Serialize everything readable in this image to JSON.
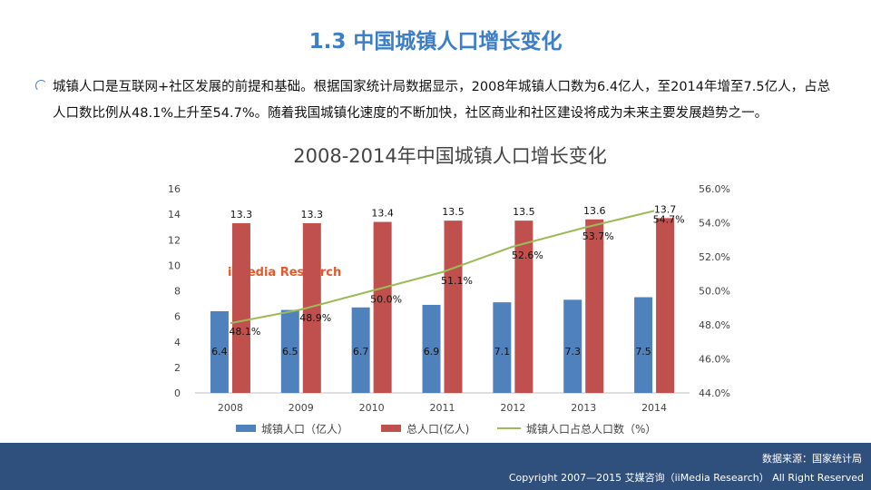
{
  "page": {
    "title": "1.3 中国城镇人口增长变化",
    "paragraph": "城镇人口是互联网+社区发展的前提和基础。根据国家统计局数据显示，2008年城镇人口数为6.4亿人，至2014年增至7.5亿人，占总人口数比例从48.1%上升至54.7%。随着我国城镇化速度的不断加快，社区商业和社区建设将成为未来主要发展趋势之一。"
  },
  "chart_data": {
    "type": "bar",
    "title": "2008-2014年中国城镇人口增长变化",
    "categories": [
      "2008",
      "2009",
      "2010",
      "2011",
      "2012",
      "2013",
      "2014"
    ],
    "series": [
      {
        "name": "城镇人口（亿人）",
        "type": "bar",
        "axis": "left",
        "color": "#4f81bd",
        "values": [
          6.4,
          6.5,
          6.7,
          6.9,
          7.1,
          7.3,
          7.5
        ],
        "labels": [
          "6.4",
          "6.5",
          "6.7",
          "6.9",
          "7.1",
          "7.3",
          "7.5"
        ]
      },
      {
        "name": "总人口(亿人)",
        "type": "bar",
        "axis": "left",
        "color": "#c0504d",
        "values": [
          13.3,
          13.3,
          13.4,
          13.5,
          13.5,
          13.6,
          13.7
        ],
        "labels": [
          "13.3",
          "13.3",
          "13.4",
          "13.5",
          "13.5",
          "13.6",
          "13.7"
        ]
      },
      {
        "name": "城镇人口占总人口数（%）",
        "type": "line",
        "axis": "right",
        "color": "#9bbb59",
        "values": [
          48.1,
          48.9,
          50.0,
          51.1,
          52.6,
          53.7,
          54.7
        ],
        "labels": [
          "48.1%",
          "48.9%",
          "50.0%",
          "51.1%",
          "52.6%",
          "53.7%",
          "54.7%"
        ]
      }
    ],
    "y_left": {
      "min": 0,
      "max": 16,
      "ticks": [
        "0",
        "2",
        "4",
        "6",
        "8",
        "10",
        "12",
        "14",
        "16"
      ]
    },
    "y_right": {
      "min": 44,
      "max": 56,
      "ticks": [
        "44.0%",
        "46.0%",
        "48.0%",
        "50.0%",
        "52.0%",
        "54.0%",
        "56.0%"
      ]
    },
    "legend_position": "bottom",
    "watermark": "iiMedia Research"
  },
  "footer": {
    "source": "数据来源：国家统计局",
    "copyright": "Copyright 2007—2015 艾媒咨询（iiMedia Research） All Right Reserved"
  },
  "colors": {
    "accent": "#3d7ec9",
    "footer_bg": "#2f4f7c"
  }
}
